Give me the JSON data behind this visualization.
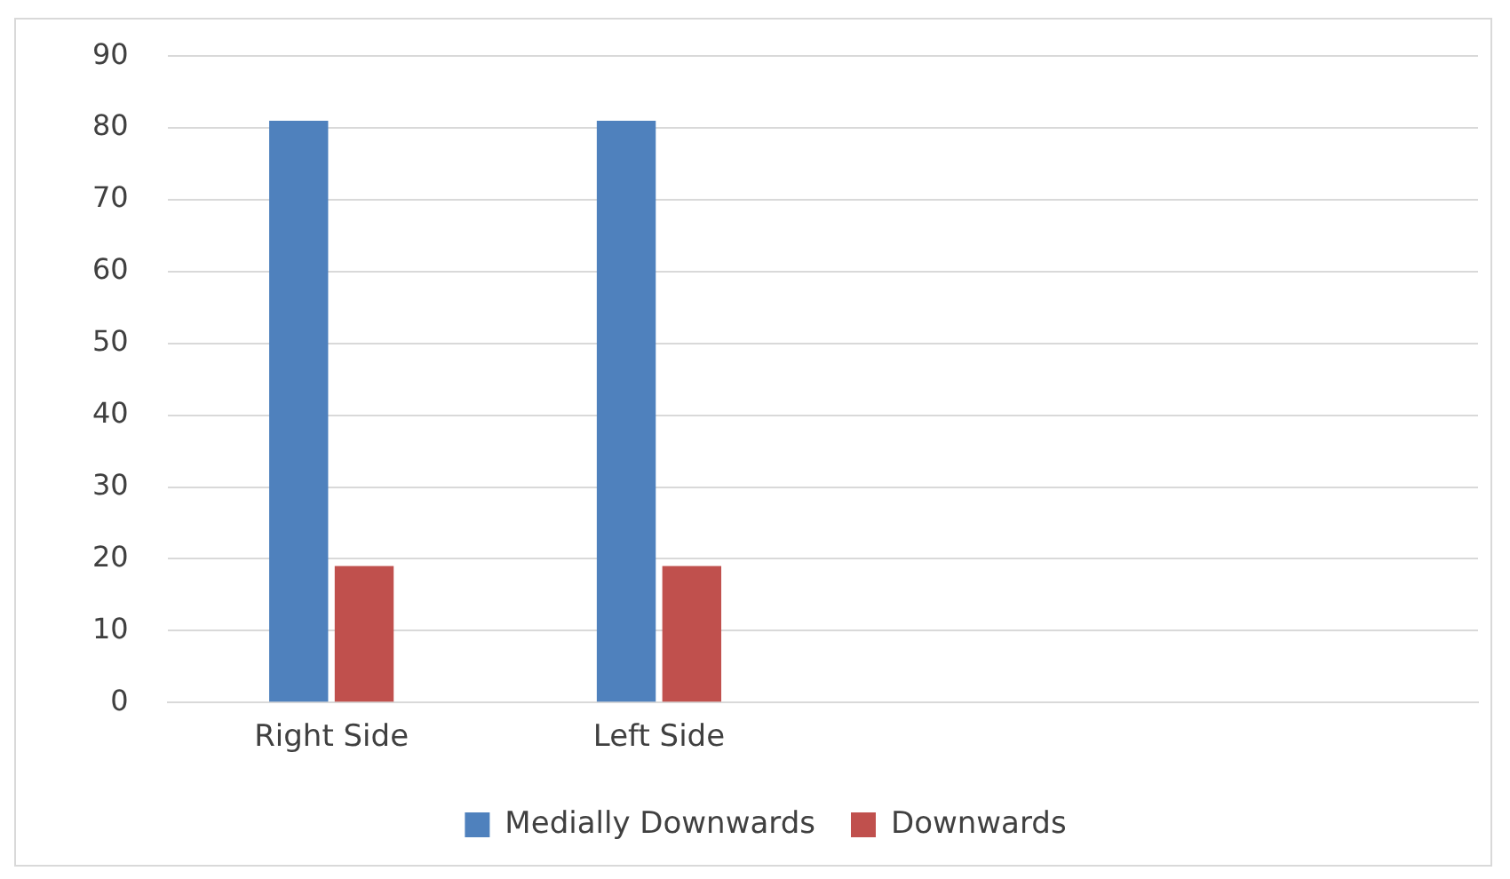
{
  "chart_data": {
    "type": "bar",
    "categories": [
      "Right Side",
      "Left Side",
      null,
      null
    ],
    "series": [
      {
        "name": "Medially Downwards",
        "color": "#4f81bd",
        "values": [
          81,
          81,
          null,
          null
        ]
      },
      {
        "name": "Downwards",
        "color": "#c0504d",
        "values": [
          19,
          19,
          null,
          null
        ]
      }
    ],
    "ylim": [
      0,
      90
    ],
    "yticks": [
      0,
      10,
      20,
      30,
      40,
      50,
      60,
      70,
      80,
      90
    ],
    "grid": "y",
    "legend": "bottom"
  }
}
